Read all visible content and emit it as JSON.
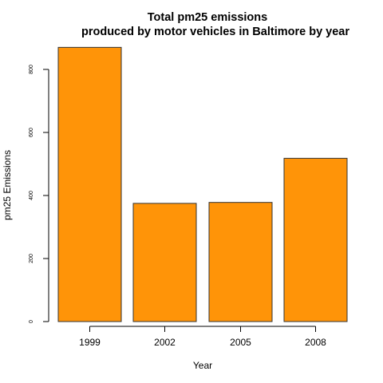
{
  "chart_data": {
    "type": "bar",
    "title_line1": "Total pm25 emissions",
    "title_line2": "produced by motor vehicles in Baltimore by year",
    "xlabel": "Year",
    "ylabel": "pm25 Emissions",
    "categories": [
      "1999",
      "2002",
      "2005",
      "2008"
    ],
    "values": [
      870,
      375,
      378,
      518
    ],
    "ylim": [
      0,
      880
    ],
    "yticks": [
      0,
      200,
      400,
      600,
      800
    ],
    "bar_color": "#FF9408",
    "bar_border_color": "#333333",
    "grid": false,
    "legend": "none"
  }
}
